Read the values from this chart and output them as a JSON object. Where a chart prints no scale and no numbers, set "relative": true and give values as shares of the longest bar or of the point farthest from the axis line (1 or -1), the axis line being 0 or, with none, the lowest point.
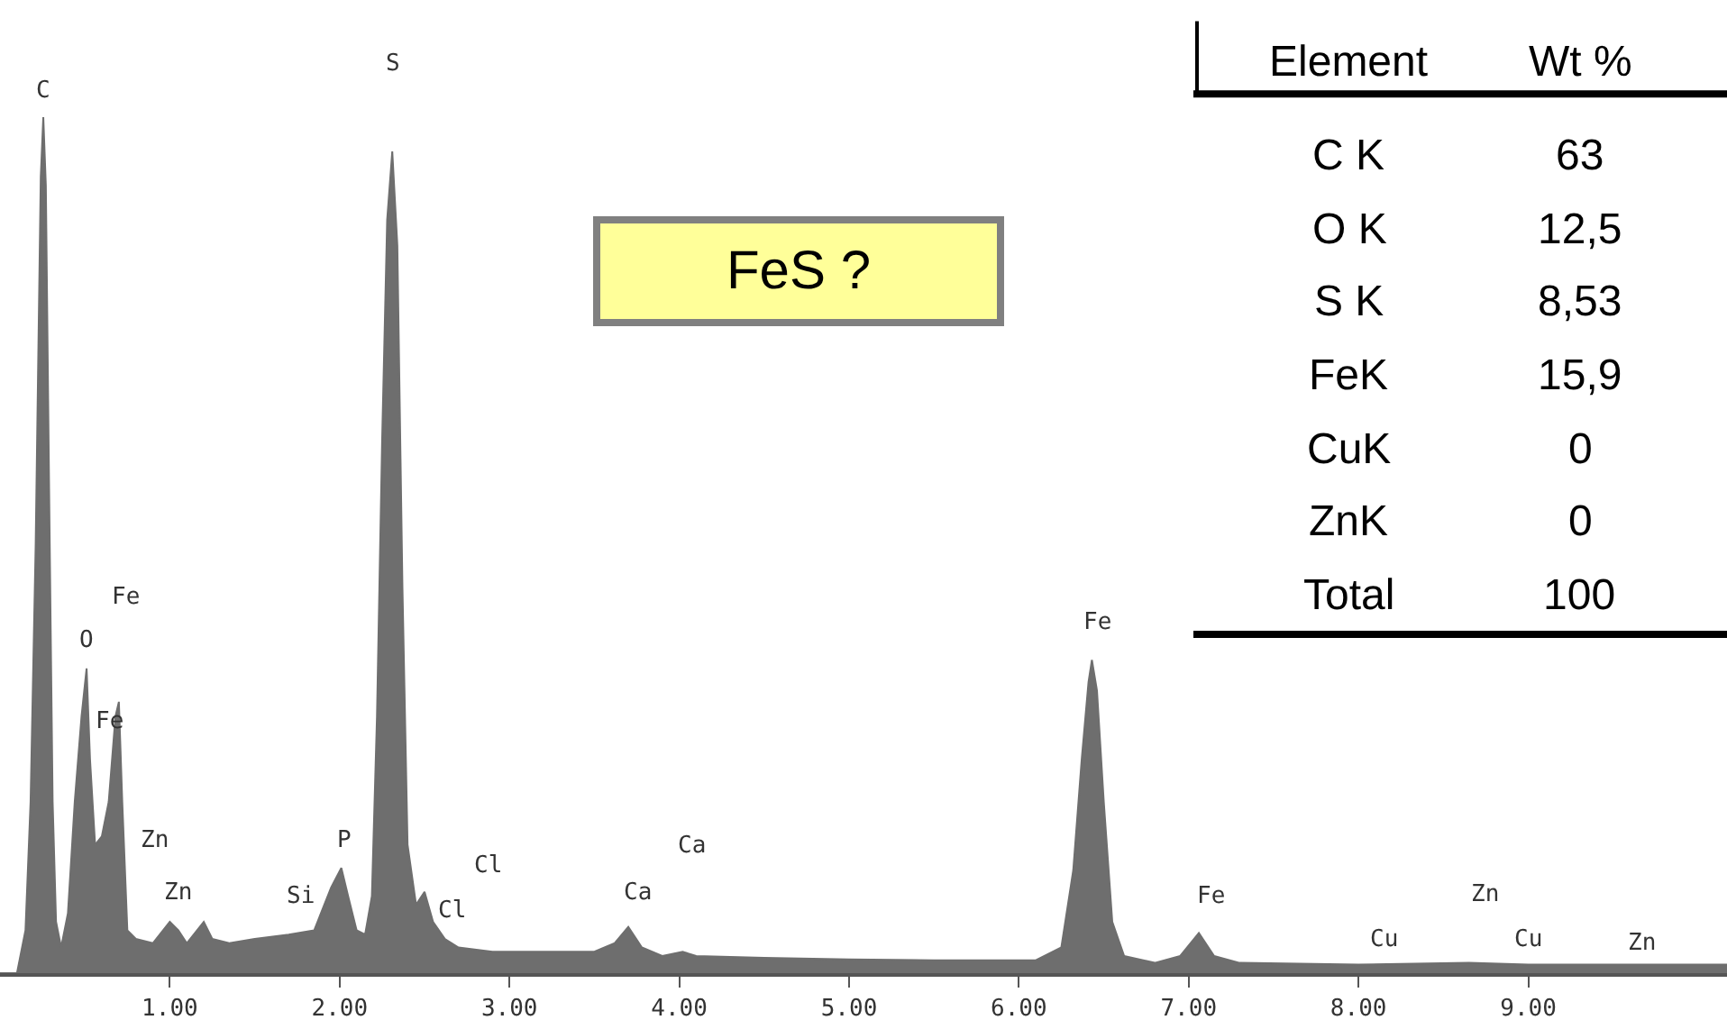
{
  "chart_data": {
    "type": "area",
    "relative": true,
    "color": "#6e6e6e",
    "xlim": [
      0,
      10.17
    ],
    "xticks": [
      {
        "value": 1,
        "label": "1.00"
      },
      {
        "value": 2,
        "label": "2.00"
      },
      {
        "value": 3,
        "label": "3.00"
      },
      {
        "value": 4,
        "label": "4.00"
      },
      {
        "value": 5,
        "label": "5.00"
      },
      {
        "value": 6,
        "label": "6.00"
      },
      {
        "value": 7,
        "label": "7.00"
      },
      {
        "value": 8,
        "label": "8.00"
      },
      {
        "value": 9,
        "label": "9.00"
      }
    ],
    "x": [
      0,
      0.1,
      0.15,
      0.18,
      0.21,
      0.24,
      0.255,
      0.27,
      0.29,
      0.31,
      0.33,
      0.36,
      0.4,
      0.44,
      0.48,
      0.51,
      0.53,
      0.56,
      0.6,
      0.64,
      0.68,
      0.7,
      0.72,
      0.75,
      0.8,
      0.9,
      1.0,
      1.05,
      1.1,
      1.2,
      1.25,
      1.35,
      1.5,
      1.7,
      1.85,
      1.95,
      2.01,
      2.05,
      2.1,
      2.15,
      2.19,
      2.22,
      2.25,
      2.28,
      2.31,
      2.34,
      2.37,
      2.4,
      2.45,
      2.5,
      2.55,
      2.62,
      2.7,
      2.9,
      3.2,
      3.5,
      3.62,
      3.7,
      3.78,
      3.9,
      4.02,
      4.1,
      4.5,
      5.0,
      5.5,
      6.1,
      6.25,
      6.32,
      6.37,
      6.41,
      6.43,
      6.46,
      6.5,
      6.55,
      6.62,
      6.8,
      6.95,
      7.06,
      7.15,
      7.3,
      8.0,
      8.65,
      9.0,
      9.6,
      10.17
    ],
    "values": [
      0,
      0,
      0.05,
      0.2,
      0.5,
      0.93,
      1.0,
      0.92,
      0.55,
      0.2,
      0.06,
      0.03,
      0.07,
      0.2,
      0.3,
      0.356,
      0.25,
      0.15,
      0.16,
      0.2,
      0.3,
      0.317,
      0.2,
      0.05,
      0.04,
      0.035,
      0.06,
      0.05,
      0.035,
      0.06,
      0.04,
      0.035,
      0.04,
      0.045,
      0.05,
      0.1,
      0.123,
      0.09,
      0.05,
      0.045,
      0.09,
      0.3,
      0.62,
      0.88,
      0.96,
      0.85,
      0.45,
      0.15,
      0.08,
      0.095,
      0.06,
      0.04,
      0.03,
      0.025,
      0.025,
      0.025,
      0.035,
      0.054,
      0.03,
      0.02,
      0.025,
      0.02,
      0.018,
      0.016,
      0.015,
      0.015,
      0.03,
      0.12,
      0.25,
      0.34,
      0.366,
      0.33,
      0.2,
      0.06,
      0.02,
      0.012,
      0.02,
      0.047,
      0.02,
      0.012,
      0.01,
      0.012,
      0.01,
      0.01,
      0.01
    ],
    "annotations": [
      "C",
      "S",
      "O",
      "Fe",
      "Fe",
      "Zn",
      "Zn",
      "Si",
      "P",
      "Cl",
      "Cl",
      "Ca",
      "Ca",
      "Fe",
      "Fe",
      "Cu",
      "Zn",
      "Cu",
      "Zn",
      "FeS ?",
      "Element",
      "Wt %",
      "C K",
      "63",
      "O K",
      "12,5",
      "S K",
      "8,53",
      "FeK",
      "15,9",
      "CuK",
      "0",
      "ZnK",
      "0",
      "Total",
      "100"
    ]
  }
}
